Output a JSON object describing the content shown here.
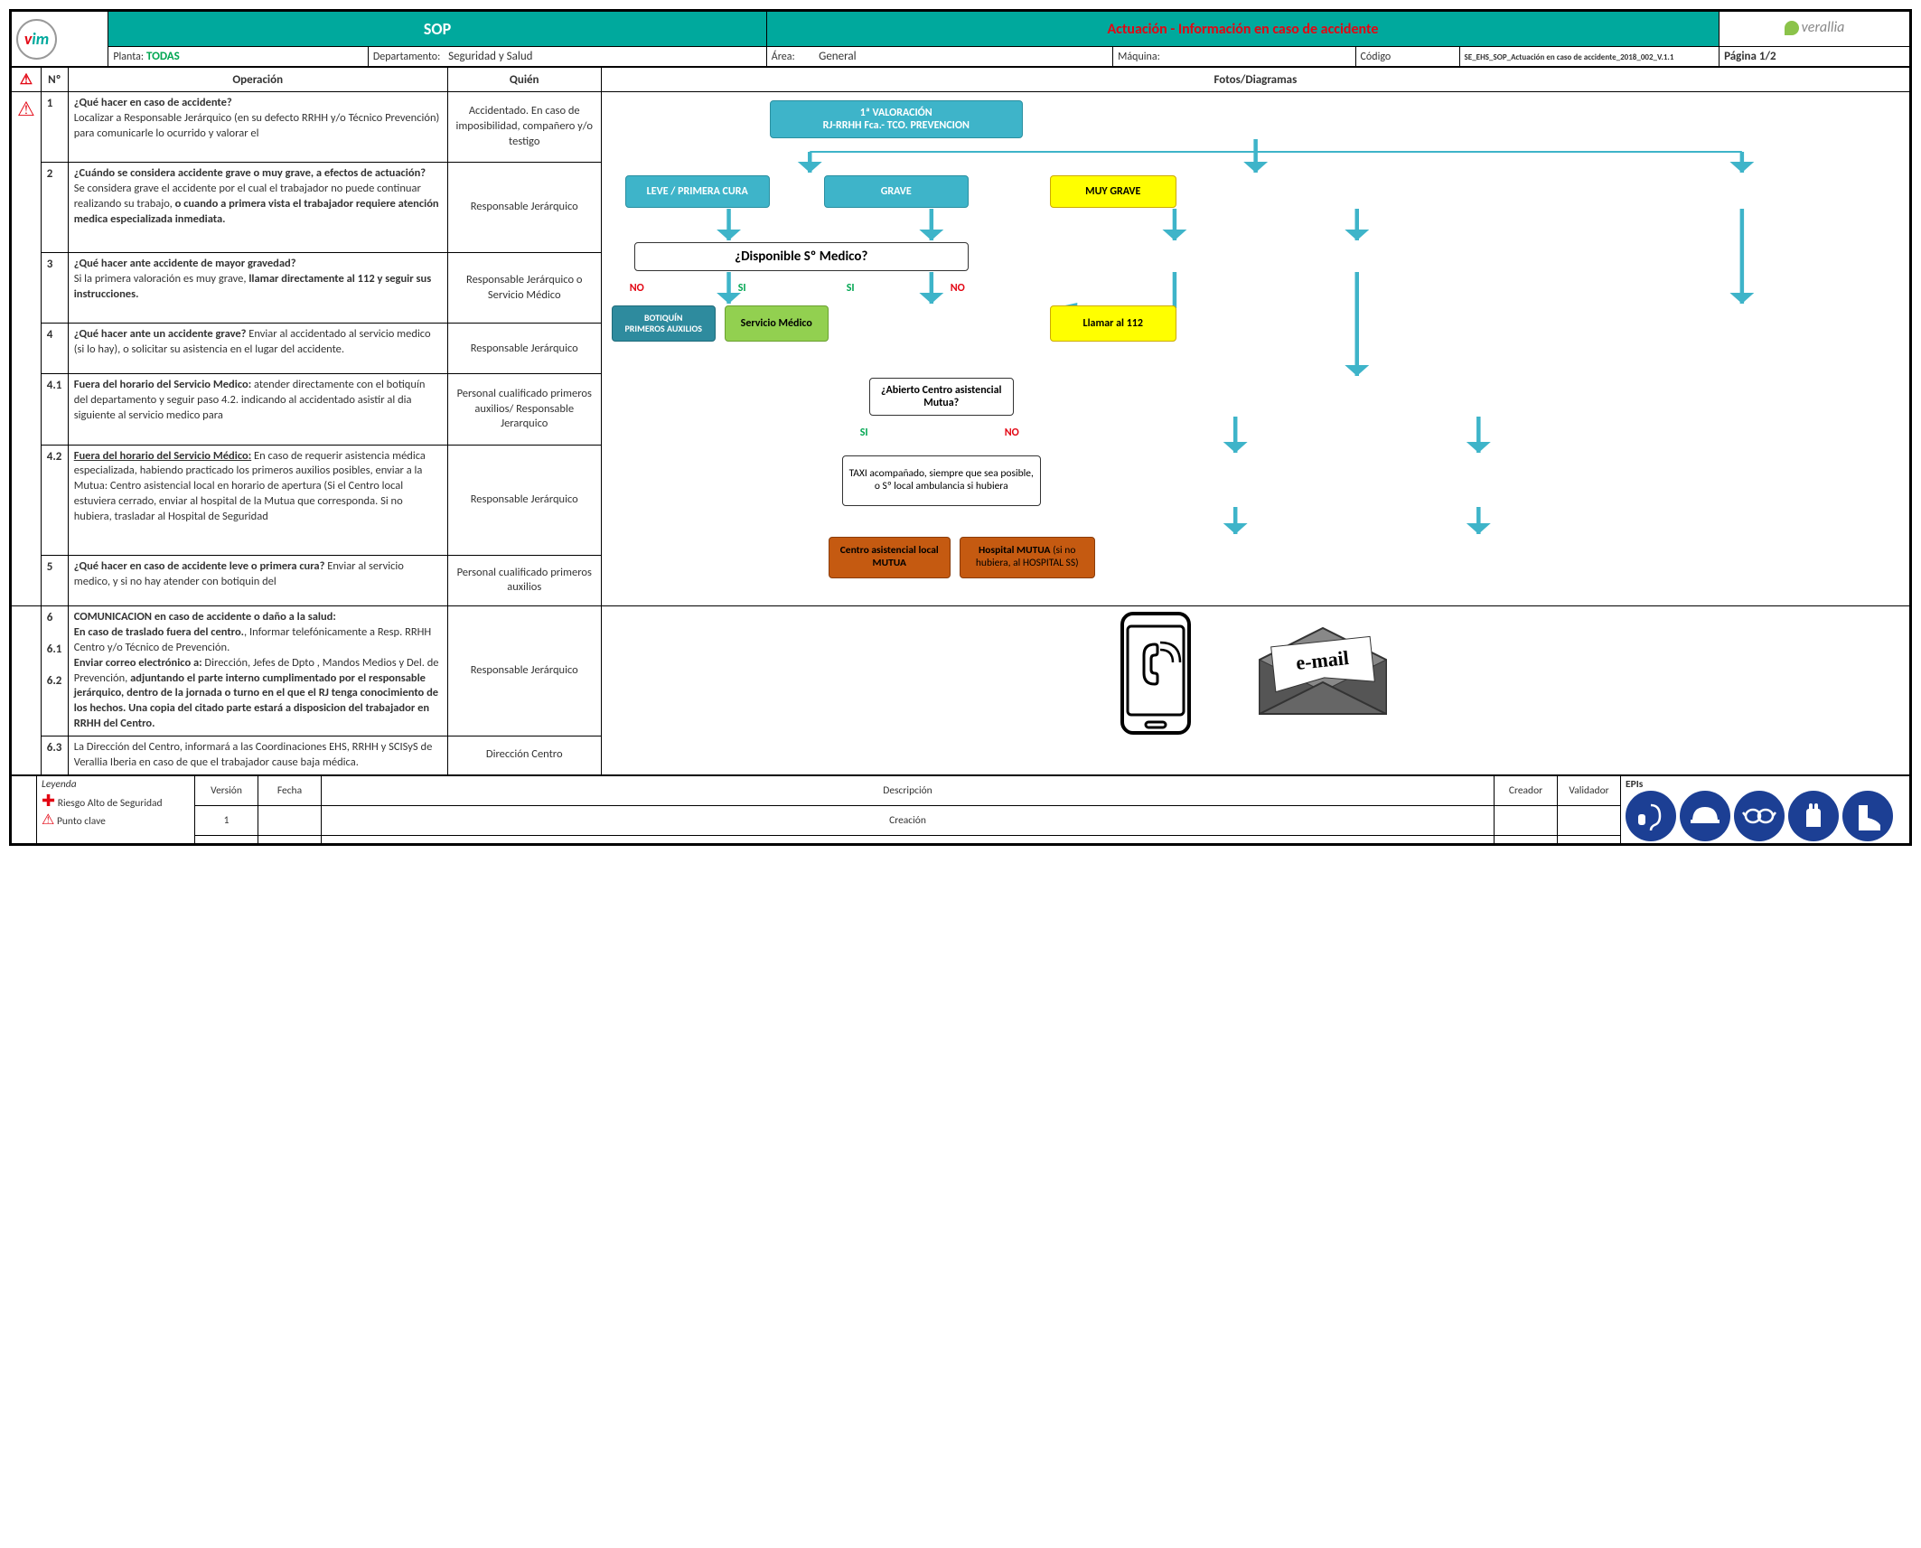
{
  "header": {
    "sop": "SOP",
    "title": "Actuación - Información en caso de accidente",
    "planta_lbl": "Planta:",
    "planta_val": "TODAS",
    "depto_lbl": "Departamento:",
    "depto_val": "Seguridad y Salud",
    "area_lbl": "Área:",
    "area_val": "General",
    "maquina_lbl": "Máquina:",
    "codigo_lbl": "Código",
    "codigo_val": "SE_EHS_SOP_Actuación en caso de accidente_2018_002_V.1.1",
    "pagina": "Página 1/2",
    "brand": "verallia"
  },
  "cols": {
    "num": "Nº",
    "op": "Operación",
    "quien": "Quién",
    "fotos": "Fotos/Diagramas"
  },
  "rows": [
    {
      "n": "1",
      "q": "¿Qué hacer en caso de accidente?",
      "t": "Localizar a Responsable Jerárquico (en su defecto RRHH y/o Técnico Prevención) para comunicarle lo ocurrido y valorar el",
      "w": "Accidentado. En caso de imposibilidad, compañero y/o testigo"
    },
    {
      "n": "2",
      "q": "¿Cuándo se considera accidente grave o muy grave, a efectos de actuación?",
      "t": "Se considera grave el accidente por el cual el trabajador no puede continuar realizando su trabajo, <b>o cuando a primera vista el trabajador requiere atención medica especializada inmediata.</b>",
      "w": "Responsable Jerárquico"
    },
    {
      "n": "3",
      "q": "¿Qué hacer ante accidente de mayor gravedad?",
      "t": "Si la primera valoración es muy grave, <b>llamar directamente al 112 y seguir sus instrucciones.</b>",
      "w": "Responsable Jerárquico o Servicio Médico"
    },
    {
      "n": "4",
      "q": "¿Qué hacer ante un accidente grave?",
      "t": " Enviar al accidentado al servicio medico (si lo hay), o solicitar su asistencia en el lugar del accidente.",
      "w": "Responsable Jerárquico"
    },
    {
      "n": "4.1",
      "q": "",
      "t": "<b>Fuera del horario del Servicio Medico:</b> atender directamente con el botiquín del departamento y seguir paso 4.2. indicando al accidentado asistir al dia siguiente al servicio medico para",
      "w": "Personal cualificado primeros auxilios/ Responsable Jerarquico"
    },
    {
      "n": "4.2",
      "q": "",
      "t": "<b><u>Fuera del horario del Servicio Médico:</u></b> En caso de requerir asistencia médica especializada, habiendo practicado los primeros auxilios posibles, enviar a la Mutua: Centro asistencial local en horario de apertura (Si el Centro local estuviera cerrado, enviar al hospital de la Mutua que corresponda. Si no hubiera, trasladar al Hospital de Seguridad",
      "w": "Responsable Jerárquico"
    },
    {
      "n": "5",
      "q": "¿Qué hacer en caso de accidente leve o primera cura?",
      "t": " Enviar al servicio medico, y si no hay atender con botiquin del",
      "w": "Personal cualificado primeros auxilios"
    }
  ],
  "comm": {
    "n6": "6",
    "q6": "COMUNICACION en caso de accidente o daño a la salud:",
    "n61": "6.1",
    "t61": "<b>En caso de traslado fuera del centro.</b>, Informar telefónicamente a Resp. RRHH Centro y/o Técnico de Prevención.",
    "n62": "6.2",
    "t62": "<b>Enviar correo electrónico a:</b> Dirección, Jefes de Dpto , Mandos Medios y Del. de Prevención, <b>adjuntando el parte interno cumplimentado por el responsable jerárquico, dentro de la jornada o turno en el que el RJ tenga conocimiento de los hechos. Una copia del citado parte estará a disposicion del trabajador en RRHH del Centro.</b>",
    "w6": "Responsable Jerárquico",
    "n63": "6.3",
    "t63": "La Dirección del Centro, informará a las Coordinaciones EHS, RRHH y SCISyS de Verallia Iberia en caso de que el trabajador cause baja médica.",
    "w63": "Dirección Centro"
  },
  "flow": {
    "root": "1ª VALORACIÓN\nRJ-RRHH Fca.- TCO. PREVENCION",
    "leve": "LEVE / PRIMERA CURA",
    "grave": "GRAVE",
    "muygrave": "MUY GRAVE",
    "disp": "¿Disponible Sº Medico?",
    "botiquin": "BOTIQUÍN\nPRIMEROS AUXILIOS",
    "servmed": "Servicio Médico",
    "llamar": "Llamar al 112",
    "abierto": "¿Abierto Centro asistencial Mutua?",
    "taxi": "TAXI acompañado, siempre que sea posible, o Sº local ambulancia si hubiera",
    "centro": "Centro asistencial local MUTUA",
    "hosp": "Hospital MUTUA (si no hubiera, al HOSPITAL SS)",
    "si": "SI",
    "no": "NO"
  },
  "footer": {
    "leyenda": "Leyenda",
    "riesgo": "Riesgo Alto de Seguridad",
    "punto": "Punto clave",
    "version_h": "Versión",
    "fecha_h": "Fecha",
    "desc_h": "Descripción",
    "creador_h": "Creador",
    "validador_h": "Validador",
    "version": "1",
    "desc": "Creación",
    "epis": "EPIs"
  },
  "email_label": "e-mail"
}
